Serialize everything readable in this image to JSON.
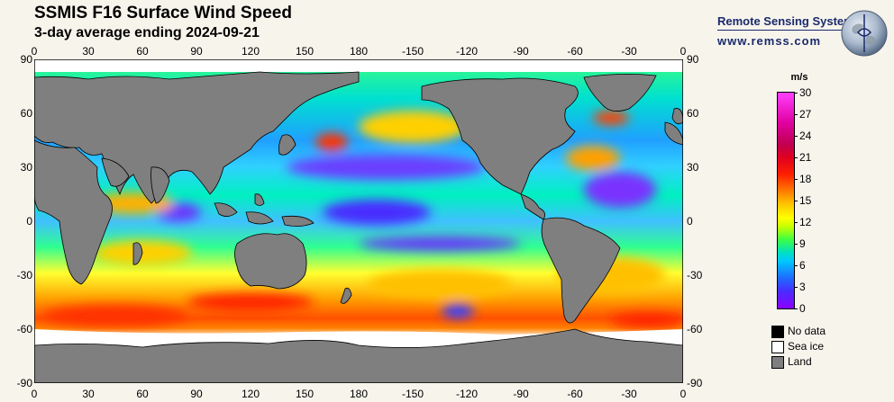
{
  "title": "SSMIS F16 Surface Wind Speed",
  "subtitle": "3-day average ending 2024-09-21",
  "brand": {
    "name": "Remote Sensing Systems",
    "url": "www.remss.com"
  },
  "axes": {
    "lon_ticks": [
      "0",
      "30",
      "60",
      "90",
      "120",
      "150",
      "180",
      "-150",
      "-120",
      "-90",
      "-60",
      "-30",
      "0"
    ],
    "lat_ticks": [
      "90",
      "60",
      "30",
      "0",
      "-30",
      "-60",
      "-90"
    ]
  },
  "colorbar": {
    "unit": "m/s",
    "ticks": [
      "0",
      "3",
      "6",
      "9",
      "12",
      "15",
      "18",
      "21",
      "24",
      "27",
      "30"
    ],
    "range": [
      0,
      30
    ]
  },
  "legend": [
    {
      "label": "No data",
      "color": "#000000"
    },
    {
      "label": "Sea ice",
      "color": "#ffffff"
    },
    {
      "label": "Land",
      "color": "#7f7f7f"
    }
  ],
  "colors": {
    "land": "#7f7f7f",
    "ocean_mid": "#00e0c0"
  }
}
